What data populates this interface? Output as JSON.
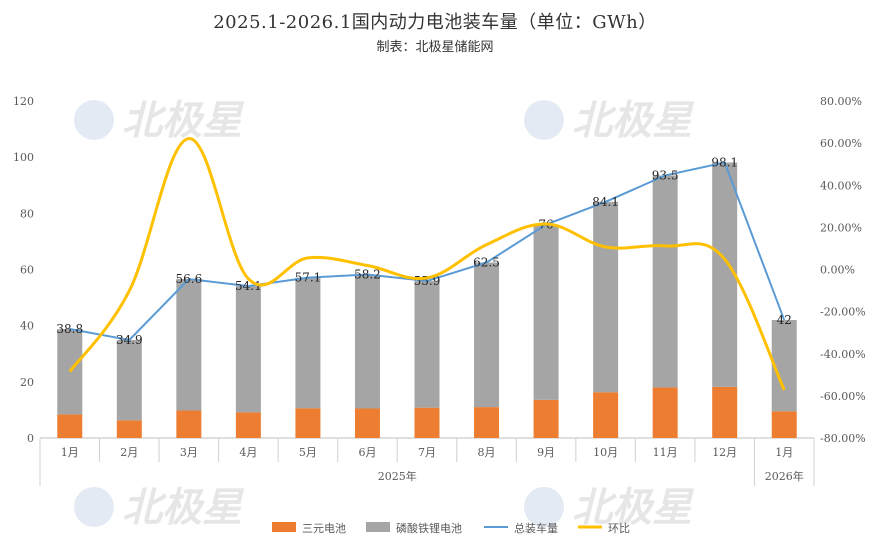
{
  "title": "2025.1-2026.1国内动力电池装车量（单位：GWh）",
  "subtitle": "制表：北极星储能网",
  "watermark_text": "北极星",
  "chart_data": {
    "type": "bar",
    "categories": [
      "1月",
      "2月",
      "3月",
      "4月",
      "5月",
      "6月",
      "7月",
      "8月",
      "9月",
      "10月",
      "11月",
      "12月",
      "1月"
    ],
    "year_groups": [
      {
        "label": "2025年",
        "from": 0,
        "to": 11
      },
      {
        "label": "2026年",
        "from": 12,
        "to": 12
      }
    ],
    "series": [
      {
        "name": "三元电池",
        "kind": "stacked-bar",
        "color": "#ED7D31",
        "values": [
          8.4,
          6.3,
          9.8,
          9.1,
          10.6,
          10.5,
          10.8,
          11.0,
          13.6,
          16.3,
          18.0,
          18.2,
          9.5
        ]
      },
      {
        "name": "磷酸铁锂电池",
        "kind": "stacked-bar",
        "color": "#A5A5A5",
        "values": [
          30.4,
          28.6,
          46.8,
          45.0,
          46.5,
          47.7,
          45.1,
          51.5,
          62.4,
          67.8,
          75.5,
          79.9,
          32.5
        ]
      },
      {
        "name": "总装车量",
        "kind": "line",
        "axis": "left",
        "color": "#5B9BD5",
        "values": [
          38.8,
          34.9,
          56.6,
          54.1,
          57.1,
          58.2,
          55.9,
          62.5,
          76,
          84.1,
          93.5,
          98.1,
          42
        ],
        "labels": [
          "38.8",
          "34.9",
          "56.6",
          "54.1",
          "57.1",
          "58.2",
          "55.9",
          "62.5",
          "76",
          "84.1",
          "93.5",
          "98.1",
          "42"
        ]
      },
      {
        "name": "环比",
        "kind": "line",
        "axis": "right",
        "color": "#FFC000",
        "values": [
          -48.5,
          -10.1,
          62.2,
          -4.4,
          5.5,
          1.9,
          -4.0,
          11.8,
          21.6,
          10.7,
          11.2,
          4.9,
          -57.2
        ]
      }
    ],
    "y_left": {
      "min": 0,
      "max": 120,
      "step": 20,
      "ticks": [
        "0",
        "20",
        "40",
        "60",
        "80",
        "100",
        "120"
      ]
    },
    "y_right": {
      "min": -80,
      "max": 80,
      "step": 20,
      "ticks": [
        "-80.00%",
        "-60.00%",
        "-40.00%",
        "-20.00%",
        "0.00%",
        "20.00%",
        "40.00%",
        "60.00%",
        "80.00%"
      ]
    },
    "grid": false,
    "legend_position": "bottom"
  }
}
